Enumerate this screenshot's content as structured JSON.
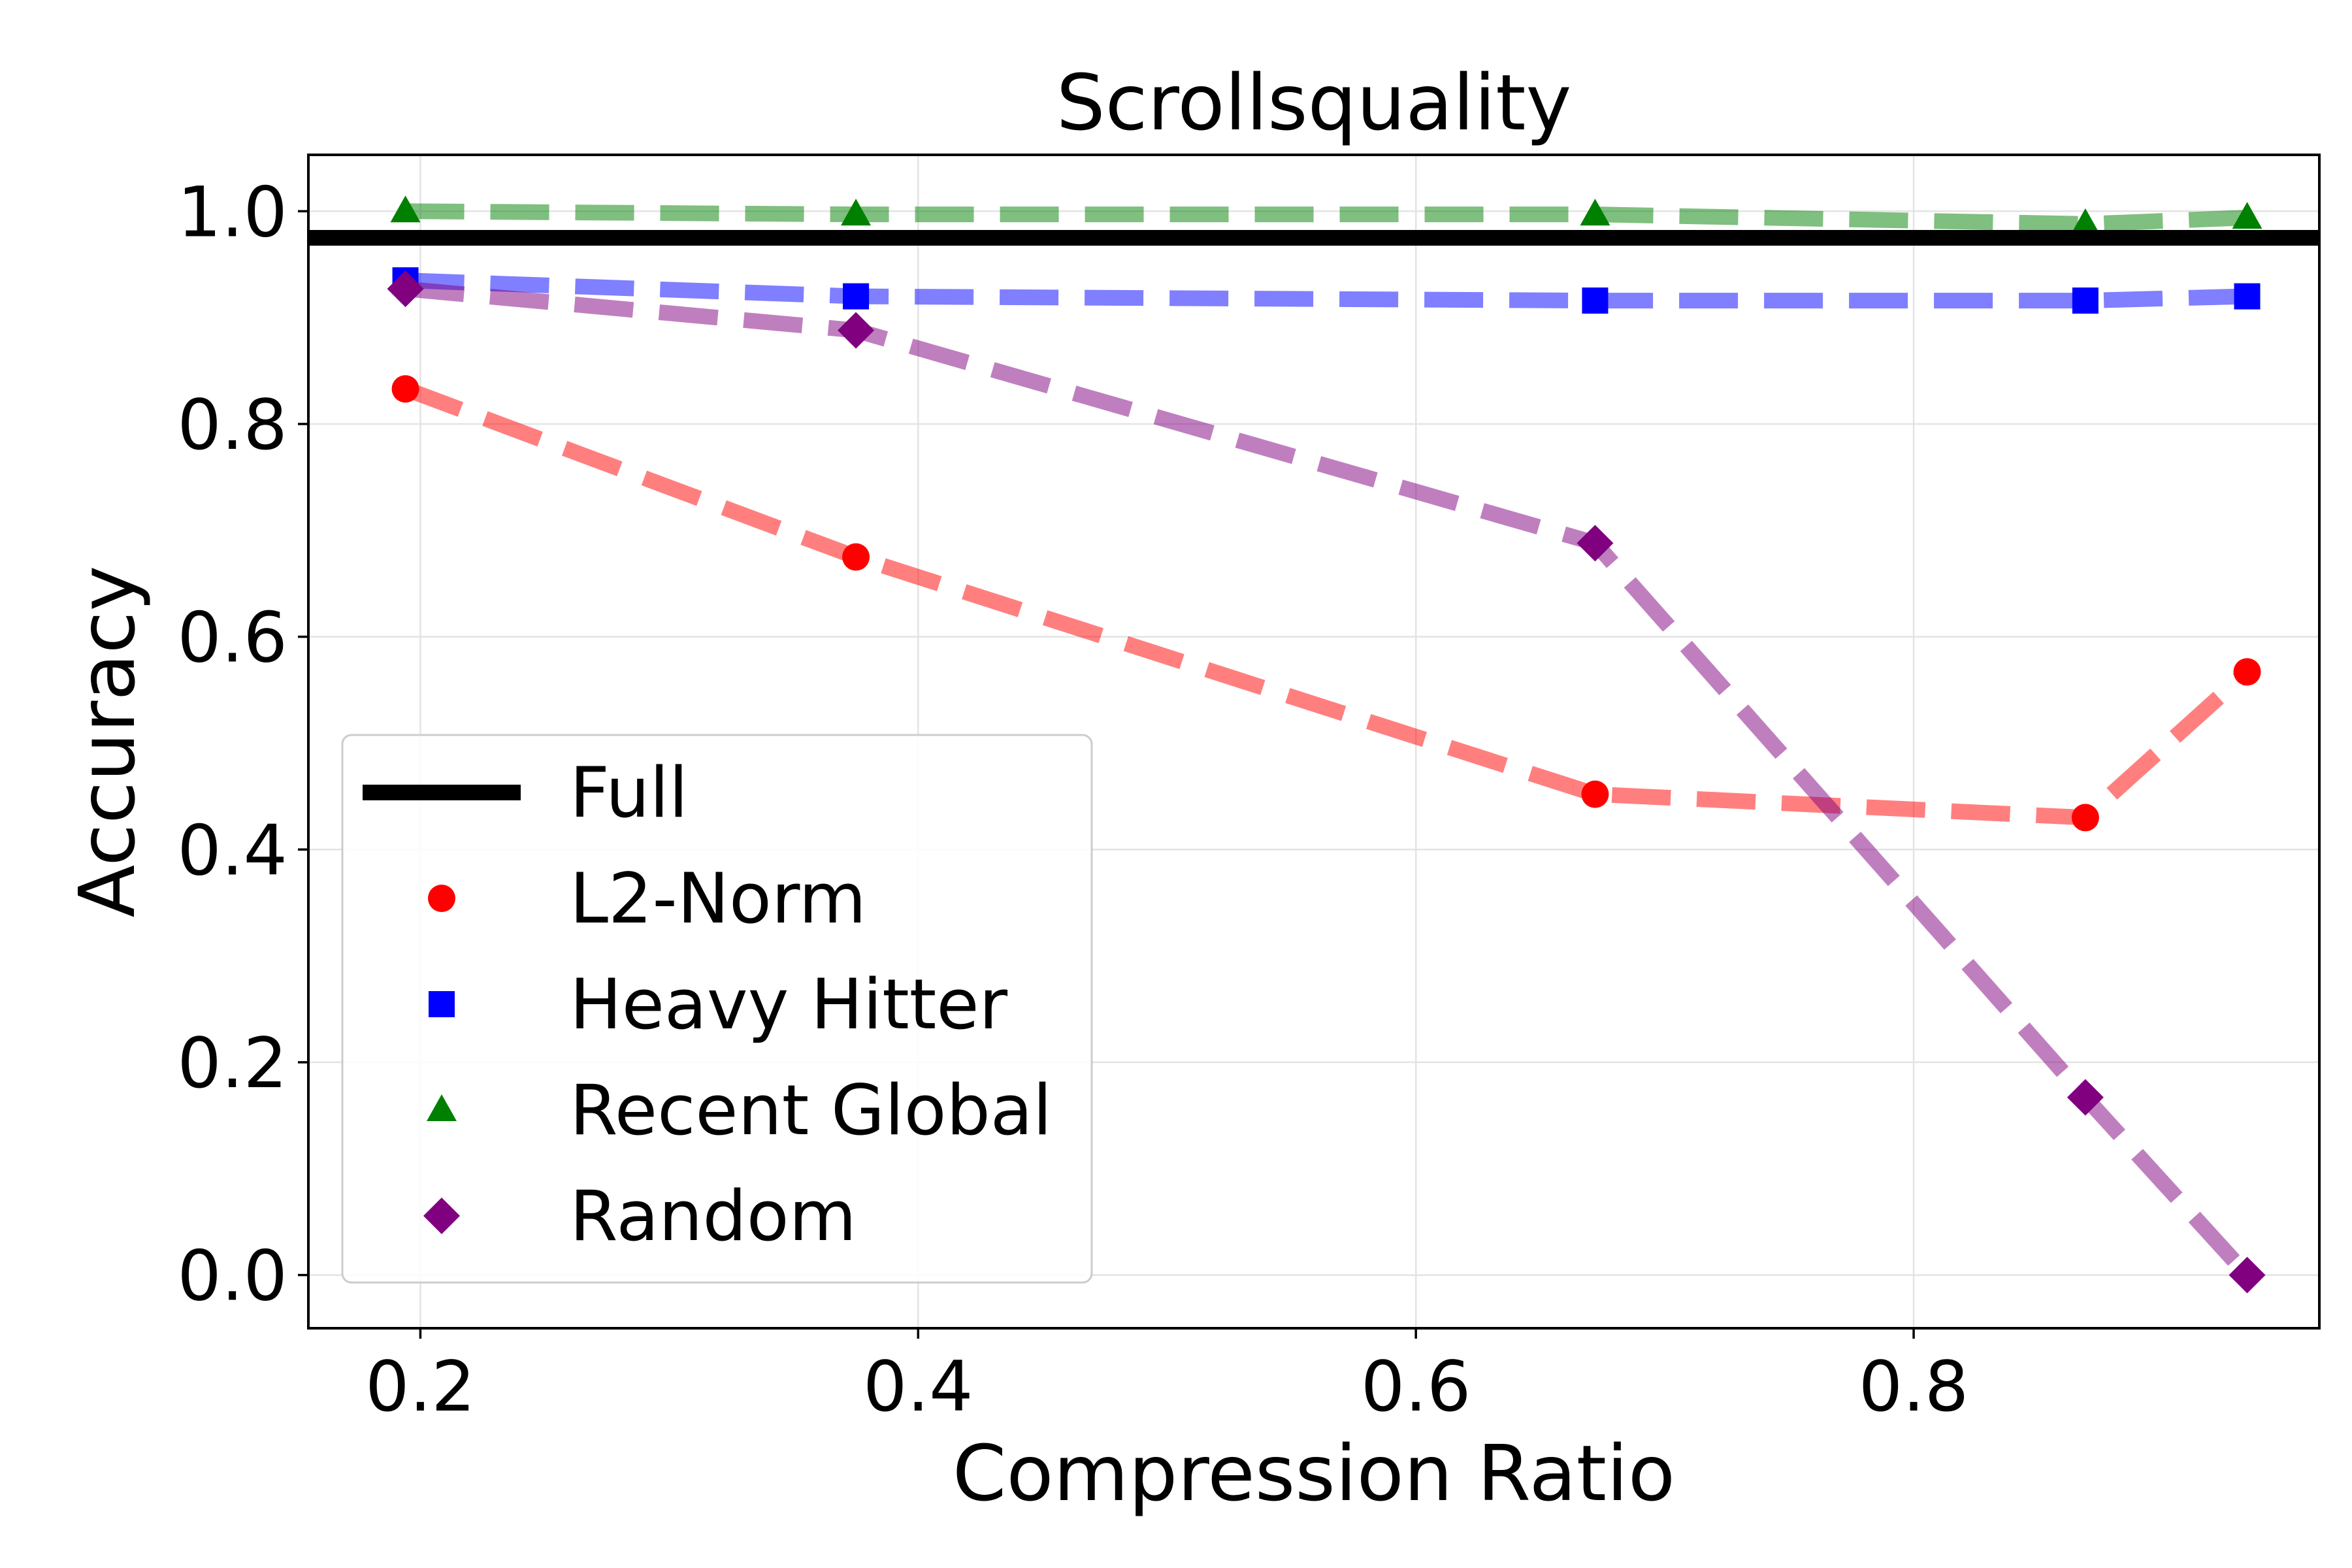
{
  "chart_data": {
    "type": "line",
    "title": "Scrollsquality",
    "xlabel": "Compression Ratio",
    "ylabel": "Accuracy",
    "xlim": [
      0.155,
      0.963
    ],
    "ylim": [
      -0.05,
      1.053
    ],
    "xticks": [
      {
        "value": 0.2,
        "label": "0.2"
      },
      {
        "value": 0.4,
        "label": "0.4"
      },
      {
        "value": 0.6,
        "label": "0.6"
      },
      {
        "value": 0.8,
        "label": "0.8"
      }
    ],
    "yticks": [
      {
        "value": 0.0,
        "label": "0.0"
      },
      {
        "value": 0.2,
        "label": "0.2"
      },
      {
        "value": 0.4,
        "label": "0.4"
      },
      {
        "value": 0.6,
        "label": "0.6"
      },
      {
        "value": 0.8,
        "label": "0.8"
      },
      {
        "value": 1.0,
        "label": "1.0"
      }
    ],
    "grid": true,
    "legend_position": "lower-left",
    "reference_line": {
      "name": "Full",
      "y": 0.975,
      "color": "#000000"
    },
    "x": [
      0.194,
      0.375,
      0.672,
      0.869,
      0.934
    ],
    "series": [
      {
        "name": "L2-Norm",
        "marker": "circle",
        "color": "#ff0000",
        "values": [
          0.833,
          0.675,
          0.452,
          0.43,
          0.567
        ]
      },
      {
        "name": "Heavy Hitter",
        "marker": "square",
        "color": "#0000ff",
        "values": [
          0.935,
          0.92,
          0.916,
          0.916,
          0.92
        ]
      },
      {
        "name": "Recent Global",
        "marker": "triangle",
        "color": "#008000",
        "values": [
          1.0,
          0.997,
          0.997,
          0.988,
          0.994
        ]
      },
      {
        "name": "Random",
        "marker": "diamond",
        "color": "#800080",
        "values": [
          0.927,
          0.888,
          0.688,
          0.167,
          0.0
        ]
      }
    ]
  }
}
